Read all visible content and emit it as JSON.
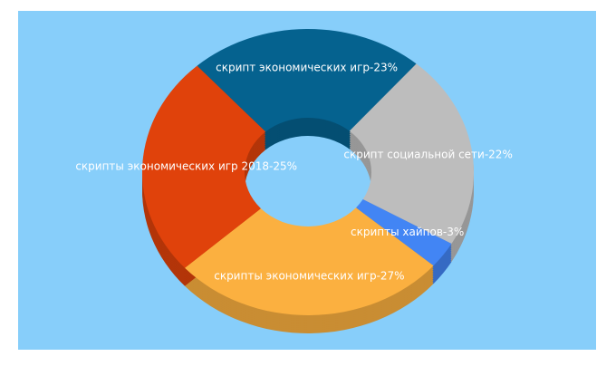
{
  "chart_data": {
    "type": "donut3d",
    "values": [
      23,
      22,
      3,
      27,
      25
    ],
    "value_labels": [
      "скрипт экономических игр-23%",
      "скрипт социальной сети-22%",
      "скрипты хайпов-3%",
      "скрипты экономических игр-27%",
      "скрипты экономических игр 2018-25%"
    ],
    "colors": [
      "#05628f",
      "#bdbdbd",
      "#4285f4",
      "#fbb040",
      "#e0420b"
    ]
  }
}
